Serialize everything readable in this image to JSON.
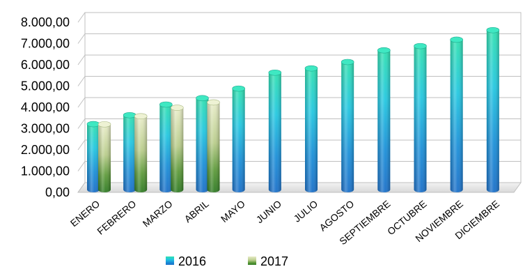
{
  "chart_data": {
    "type": "bar",
    "categories": [
      "ENERO",
      "FEBRERO",
      "MARZO",
      "ABRIL",
      "MAYO",
      "JUNIO",
      "JULIO",
      "AGOSTO",
      "SEPTIEMBRE",
      "OCTUBRE",
      "NOVIEMBRE",
      "DICIEMBRE"
    ],
    "series": [
      {
        "name": "2016",
        "values": [
          3080,
          3500,
          4000,
          4300,
          4750,
          5500,
          5700,
          6000,
          6550,
          6750,
          7050,
          7500
        ],
        "color": "#1ab4dd"
      },
      {
        "name": "2017",
        "values": [
          3070,
          3450,
          3850,
          4100,
          null,
          null,
          null,
          null,
          null,
          null,
          null,
          null
        ],
        "color": "#8fbf5a"
      }
    ],
    "yticks": [
      "0,00",
      "1.000,00",
      "2.000,00",
      "3.000,00",
      "4.000,00",
      "5.000,00",
      "6.000,00",
      "7.000,00",
      "8.000,00"
    ],
    "ylim": [
      0,
      8000
    ],
    "grid": true,
    "legend_position": "bottom",
    "title": "",
    "xlabel": "",
    "ylabel": ""
  }
}
